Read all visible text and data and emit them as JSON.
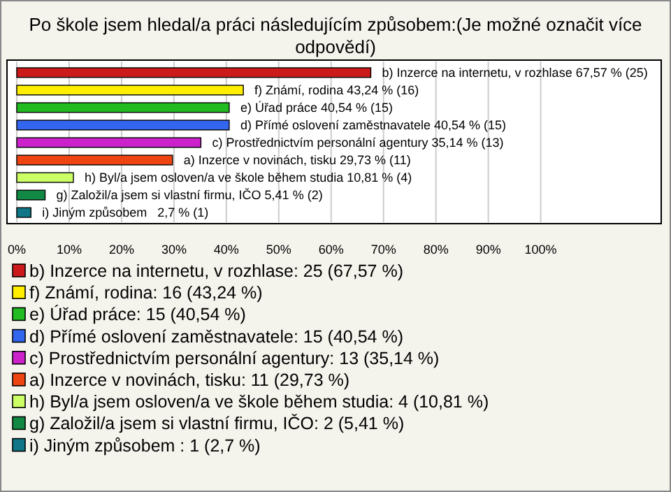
{
  "chart_data": {
    "type": "bar",
    "orientation": "horizontal",
    "title": "Po škole jsem hledal/a práci následujícím způsobem:(Je možné označit více odpovědí)",
    "categories": [
      "b) Inzerce na internetu, v rozhlase",
      "f) Známí, rodina",
      "e) Úřad práce",
      "d) Přímé oslovení zaměstnavatele",
      "c) Prostřednictvím personální agentury",
      "a) Inzerce v novinách, tisku",
      "h) Byl/a jsem osloven/a ve škole během studia",
      "g) Založil/a jsem si vlastní firmu, IČO",
      "i) Jiným způsobem "
    ],
    "values": [
      67.57,
      43.24,
      40.54,
      40.54,
      35.14,
      29.73,
      10.81,
      5.41,
      2.7
    ],
    "value_labels": [
      "67,57 % (25)",
      "43,24 % (16)",
      "40,54 % (15)",
      "40,54 % (15)",
      "35,14 % (13)",
      "29,73 % (11)",
      "10,81 % (4)",
      "5,41 % (2)",
      " 2,7 % (1)"
    ],
    "colors": [
      "#cc1a1a",
      "#ffee00",
      "#22bb22",
      "#3366ee",
      "#cc22cc",
      "#ee4411",
      "#ccff66",
      "#118844",
      "#117788"
    ],
    "xlim": [
      0,
      123
    ],
    "xticks": [
      {
        "value": 0,
        "label": "0%"
      },
      {
        "value": 10,
        "label": "10%"
      },
      {
        "value": 20,
        "label": "20%"
      },
      {
        "value": 30,
        "label": "30%"
      },
      {
        "value": 40,
        "label": "40%"
      },
      {
        "value": 50,
        "label": "50%"
      },
      {
        "value": 60,
        "label": "60%"
      },
      {
        "value": 70,
        "label": "70%"
      },
      {
        "value": 80,
        "label": "80%"
      },
      {
        "value": 90,
        "label": "90%"
      },
      {
        "value": 100,
        "label": "100%"
      }
    ],
    "grid": "x",
    "annotations": [
      "b) Inzerce na internetu, v rozhlase: 25 (67,57 %)",
      "f) Známí, rodina: 16 (43,24 %)",
      "e) Úřad práce: 15 (40,54 %)",
      "d) Přímé oslovení zaměstnavatele: 15 (40,54 %)",
      "c) Prostřednictvím personální agentury: 13 (35,14 %)",
      "a) Inzerce v novinách, tisku: 11 (29,73 %)",
      "h) Byl/a jsem osloven/a ve škole během studia: 4 (10,81 %)",
      "g) Založil/a jsem si vlastní firmu, IČO: 2 (5,41 %)",
      "i) Jiným způsobem : 1 (2,7 %)"
    ]
  }
}
